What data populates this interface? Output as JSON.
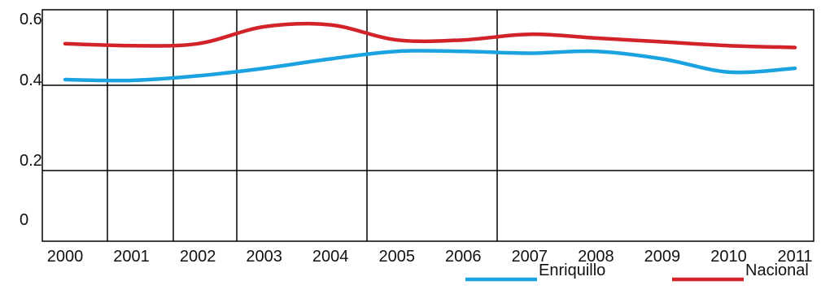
{
  "chart_data": {
    "type": "line",
    "x": [
      "2000",
      "2001",
      "2002",
      "2003",
      "2004",
      "2005",
      "2006",
      "2007",
      "2008",
      "2009",
      "2010",
      "2011"
    ],
    "series": [
      {
        "name": "Enriquillo",
        "color": "#1aa3e0",
        "values": [
          0.415,
          0.413,
          0.425,
          0.445,
          0.47,
          0.49,
          0.49,
          0.485,
          0.49,
          0.47,
          0.435,
          0.445
        ]
      },
      {
        "name": "Nacional",
        "color": "#d2232a",
        "values": [
          0.51,
          0.505,
          0.51,
          0.555,
          0.56,
          0.52,
          0.52,
          0.535,
          0.525,
          0.515,
          0.505,
          0.5
        ]
      }
    ],
    "y_tick_labels": [
      {
        "value": 0.6,
        "label": "0.6"
      },
      {
        "value": 0.4,
        "label": "0.4"
      },
      {
        "value": 0.2,
        "label": "0.2"
      },
      {
        "value": 0,
        "label": "0"
      }
    ],
    "ylim": [
      0,
      0.6
    ],
    "title": "",
    "xlabel": "",
    "ylabel": "",
    "grid": true,
    "legend_position": "bottom-right"
  }
}
